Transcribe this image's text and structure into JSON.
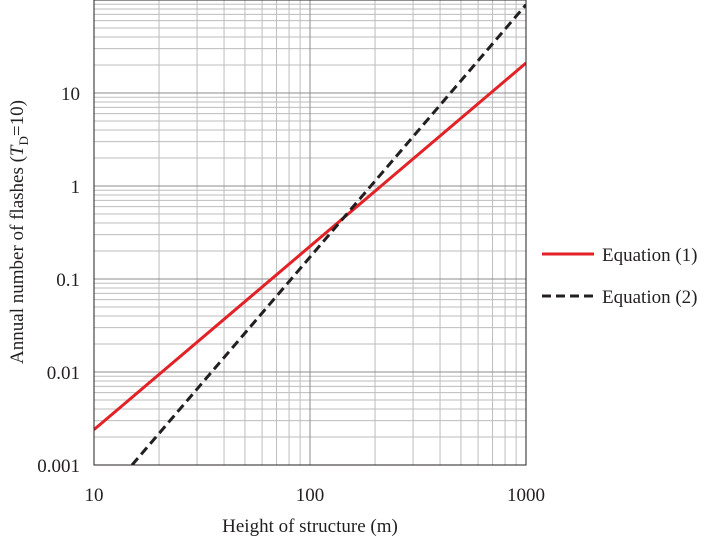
{
  "chart_data": {
    "type": "line",
    "xlabel": "Height of structure (m)",
    "ylabel": {
      "prefix": "Annual number of flashes (",
      "var": "T",
      "sub": "D",
      "suffix": "=10)"
    },
    "x_scale": "log",
    "y_scale": "log",
    "xlim": [
      10,
      1000
    ],
    "ylim": [
      0.001,
      100
    ],
    "x_ticks": [
      {
        "value": 10,
        "label": "10"
      },
      {
        "value": 100,
        "label": "100"
      },
      {
        "value": 1000,
        "label": "1000"
      }
    ],
    "y_ticks": [
      {
        "value": 0.001,
        "label": "0.001"
      },
      {
        "value": 0.01,
        "label": "0.01"
      },
      {
        "value": 0.1,
        "label": "0.1"
      },
      {
        "value": 1,
        "label": "1"
      },
      {
        "value": 10,
        "label": "10"
      }
    ],
    "grid": true,
    "legend_position": "right",
    "series": [
      {
        "name": "Equation (1)",
        "color": "#e32227",
        "dash": "solid",
        "x": [
          10,
          1000
        ],
        "y": [
          0.0024,
          21
        ]
      },
      {
        "name": "Equation (2)",
        "color": "#231f20",
        "dash": "dashed",
        "x": [
          15,
          1000
        ],
        "y": [
          0.001,
          89
        ]
      }
    ]
  }
}
